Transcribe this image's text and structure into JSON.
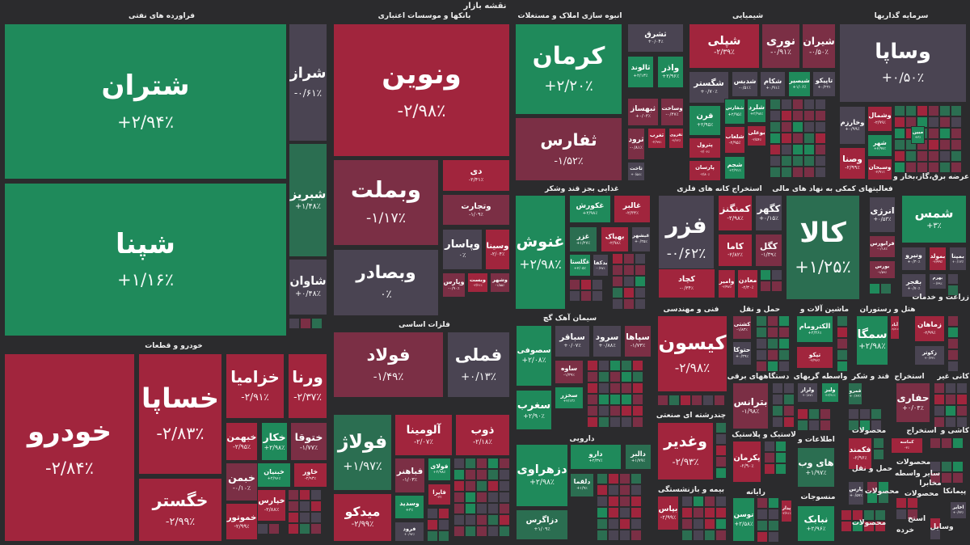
{
  "header": {
    "title": "نقشه بازار"
  },
  "colors": {
    "up-strong": "#1f8a5b",
    "up": "#2b6e51",
    "flat": "#4a4452",
    "down": "#7b2f45",
    "down-strong": "#a1253d",
    "background": "#2b2b2d"
  },
  "sectors": [
    {
      "label": "فراورده های نفتی"
    },
    {
      "label": "بانکها و موسسات اعتباری"
    },
    {
      "label": "انبوه سازی املاک و مستغلات"
    },
    {
      "label": "شیمیایی"
    },
    {
      "label": "سرمایه گذاریها"
    },
    {
      "label": "غذایی بجز قند وشکر"
    },
    {
      "label": "استخراج کانه های فلزی"
    },
    {
      "label": "فعالیتهای کمکی به نهاد های مالی"
    },
    {
      "label": "عرضه برق،گاز،بخار و"
    },
    {
      "label": "خودرو و قطعات"
    },
    {
      "label": "فلزات اساسی"
    },
    {
      "label": "سیمان آهک گچ"
    },
    {
      "label": "فنی و مهندسی"
    },
    {
      "label": "حمل و نقل"
    },
    {
      "label": "ماشین آلات و"
    },
    {
      "label": "هتل و رستوران"
    },
    {
      "label": "زراعت و خدمات"
    },
    {
      "label": "دستگاههای برقی"
    },
    {
      "label": "واسطه گریهای"
    },
    {
      "label": "قند و شکر"
    },
    {
      "label": "استخراج"
    },
    {
      "label": "کانی غیر"
    },
    {
      "label": "دارویی"
    },
    {
      "label": "چندرشته ای صنعتی"
    },
    {
      "label": "لاستیک و پلاستیک"
    },
    {
      "label": "اطلاعات و"
    },
    {
      "label": "محصولات"
    },
    {
      "label": "استخراج"
    },
    {
      "label": "کاشی و"
    },
    {
      "label": "محصولات"
    },
    {
      "label": "حمل و نقل"
    },
    {
      "label": "سایر واسطه"
    },
    {
      "label": "بیمه و بازنشستگی"
    },
    {
      "label": "رایانه"
    },
    {
      "label": "منسوجات"
    },
    {
      "label": "محصولات"
    },
    {
      "label": "محصولات"
    },
    {
      "label": "پیمانکا"
    },
    {
      "label": "مخابرا"
    },
    {
      "label": "محصولات"
    },
    {
      "label": "خرده"
    },
    {
      "label": "وسایل"
    },
    {
      "label": "استخ"
    }
  ],
  "tiles": [
    {
      "symbol": "شتران",
      "change": "+۲/۹۴٪",
      "tone": "up-strong"
    },
    {
      "symbol": "شپنا",
      "change": "+۱/۱۶٪",
      "tone": "up-strong"
    },
    {
      "symbol": "شراز",
      "change": "-۰/۶۱٪",
      "tone": "flat"
    },
    {
      "symbol": "شبریز",
      "change": "+۱/۴۸٪",
      "tone": "up"
    },
    {
      "symbol": "شاوان",
      "change": "+۰/۴۸٪",
      "tone": "flat"
    },
    {
      "symbol": "ونوین",
      "change": "-۲/۹۸٪",
      "tone": "down-strong"
    },
    {
      "symbol": "وبملت",
      "change": "-۱/۱۷٪",
      "tone": "down"
    },
    {
      "symbol": "وبصادر",
      "change": "۰٪",
      "tone": "flat"
    },
    {
      "symbol": "دی",
      "change": "-۲/۴۱٪",
      "tone": "down-strong"
    },
    {
      "symbol": "وتجارت",
      "change": "-۱/۰۹٪",
      "tone": "down"
    },
    {
      "symbol": "وپاسار",
      "change": "۰٪",
      "tone": "flat"
    },
    {
      "symbol": "وسینا",
      "change": "-۲/۰۴٪",
      "tone": "down-strong"
    },
    {
      "symbol": "وپارس",
      "change": "-۰/۹۰٪",
      "tone": "down"
    },
    {
      "symbol": "وبست",
      "change": "-۲/۴۱٪",
      "tone": "down-strong"
    },
    {
      "symbol": "وشهر",
      "change": "-۱/۵۵٪",
      "tone": "down"
    },
    {
      "symbol": "کرمان",
      "change": "+۲/۲۰٪",
      "tone": "up-strong"
    },
    {
      "symbol": "ثفارس",
      "change": "-۱/۵۲٪",
      "tone": "down"
    },
    {
      "symbol": "ثشرق",
      "change": "+۰/۰۴٪",
      "tone": "flat"
    },
    {
      "symbol": "ثالوند",
      "change": "+۲/۱۳٪",
      "tone": "up-strong"
    },
    {
      "symbol": "واذر",
      "change": "+۲/۹۶٪",
      "tone": "up-strong"
    },
    {
      "symbol": "ثبهساز",
      "change": "+۰/۰۳٪",
      "tone": "down"
    },
    {
      "symbol": "وساخت",
      "change": "-۰/۴۷٪",
      "tone": "down"
    },
    {
      "symbol": "ثرود",
      "change": "-۰/۸۱٪",
      "tone": "down"
    },
    {
      "symbol": "ثغرب",
      "change": "-۲/۹۹٪",
      "tone": "down-strong"
    },
    {
      "symbol": "ثقزوی",
      "change": "-۲/۶۲٪",
      "tone": "down-strong"
    },
    {
      "symbol": "ثاخت",
      "change": "+۰/۵۸٪",
      "tone": "flat"
    },
    {
      "symbol": "شپلی",
      "change": "-۲/۳۹٪",
      "tone": "down-strong"
    },
    {
      "symbol": "نوری",
      "change": "-۰/۹۱٪",
      "tone": "down"
    },
    {
      "symbol": "شیران",
      "change": "-۰/۵۰٪",
      "tone": "down"
    },
    {
      "symbol": "شگستر",
      "change": "+۰/۷۰٪",
      "tone": "flat"
    },
    {
      "symbol": "شدبس",
      "change": "-۰/۵۱٪",
      "tone": "flat"
    },
    {
      "symbol": "شکام",
      "change": "+۰/۹۱٪",
      "tone": "flat"
    },
    {
      "symbol": "شبصیر",
      "change": "+۱/۰۶٪",
      "tone": "up-strong"
    },
    {
      "symbol": "تاپیکو",
      "change": "+۰/۲۳٪",
      "tone": "flat"
    },
    {
      "symbol": "قرن",
      "change": "+۲/۹۵٪",
      "tone": "up-strong"
    },
    {
      "symbol": "پترول",
      "change": "-۲/۰۶٪",
      "tone": "down-strong"
    },
    {
      "symbol": "پارسان",
      "change": "-۲/۸۰٪",
      "tone": "down-strong"
    },
    {
      "symbol": "شفارس",
      "change": "+۲/۹۵٪",
      "tone": "up-strong"
    },
    {
      "symbol": "شلعاب",
      "change": "-۲/۹۵٪",
      "tone": "down-strong"
    },
    {
      "symbol": "شجم",
      "change": "+۲/۹۱٪",
      "tone": "up-strong"
    },
    {
      "symbol": "شلرد",
      "change": "+۲/۹۸٪",
      "tone": "up-strong"
    },
    {
      "symbol": "بوعلی",
      "change": "-۲/۵۴٪",
      "tone": "down-strong"
    },
    {
      "symbol": "وساپا",
      "change": "+۰/۵۰٪",
      "tone": "flat"
    },
    {
      "symbol": "وخارزم",
      "change": "+۰/۹۹٪",
      "tone": "flat"
    },
    {
      "symbol": "وشمال",
      "change": "-۲/۹۹٪",
      "tone": "down-strong"
    },
    {
      "symbol": "شهر",
      "change": "+۲/۹۷٪",
      "tone": "up-strong"
    },
    {
      "symbol": "وصنا",
      "change": "-۲/۹۹٪",
      "tone": "down-strong"
    },
    {
      "symbol": "وسبحان",
      "change": "-۲/۹۱٪",
      "tone": "down-strong"
    },
    {
      "symbol": "مبین",
      "change": "+۳٪",
      "tone": "up-strong"
    },
    {
      "symbol": "غنوش",
      "change": "+۲/۹۸٪",
      "tone": "up-strong"
    },
    {
      "symbol": "غکورش",
      "change": "+۲/۹۸٪",
      "tone": "up-strong"
    },
    {
      "symbol": "غالبر",
      "change": "-۲/۳۴٪",
      "tone": "down-strong"
    },
    {
      "symbol": "غزر",
      "change": "+۱/۲۷٪",
      "tone": "up"
    },
    {
      "symbol": "بهپاک",
      "change": "-۲/۹۸٪",
      "tone": "down-strong"
    },
    {
      "symbol": "غبشهر",
      "change": "+۰/۳۵٪",
      "tone": "flat"
    },
    {
      "symbol": "غگلستا",
      "change": "+۲/۰۵٪",
      "tone": "up-strong"
    },
    {
      "symbol": "بدکفا",
      "change": "-۰/۹۷٪",
      "tone": "flat"
    },
    {
      "symbol": "فزر",
      "change": "-۰/۶۲٪",
      "tone": "flat"
    },
    {
      "symbol": "کمنگنز",
      "change": "-۲/۹۸٪",
      "tone": "down-strong"
    },
    {
      "symbol": "کگهر",
      "change": "+۰/۱۵٪",
      "tone": "flat"
    },
    {
      "symbol": "کاما",
      "change": "-۲/۸۲٪",
      "tone": "down-strong"
    },
    {
      "symbol": "کگل",
      "change": "-۱/۳۹٪",
      "tone": "down"
    },
    {
      "symbol": "کچاد",
      "change": "-۰/۳۴٪",
      "tone": "down-strong"
    },
    {
      "symbol": "وامیر",
      "change": "-۲/۹۷٪",
      "tone": "down-strong"
    },
    {
      "symbol": "معادن",
      "change": "-۲/۳۰٪",
      "tone": "down-strong"
    },
    {
      "symbol": "کالا",
      "change": "+۱/۲۵٪",
      "tone": "up"
    },
    {
      "symbol": "انرژی",
      "change": "+۰/۵۳٪",
      "tone": "flat"
    },
    {
      "symbol": "فرابورس",
      "change": "-۰/۱۸٪",
      "tone": "down"
    },
    {
      "symbol": "بورس",
      "change": "-۱/۵۹٪",
      "tone": "down"
    },
    {
      "symbol": "شمس",
      "change": "+۳٪",
      "tone": "up-strong"
    },
    {
      "symbol": "ونیرو",
      "change": "+۰/۳۰٪",
      "tone": "flat"
    },
    {
      "symbol": "بمولد",
      "change": "-۲/۹۹٪",
      "tone": "down-strong"
    },
    {
      "symbol": "بمپنا",
      "change": "+۰/۱۲٪",
      "tone": "flat"
    },
    {
      "symbol": "بفجر",
      "change": "+۰/۷۰٪",
      "tone": "flat"
    },
    {
      "symbol": "بهرم",
      "change": "-۰/۳۹٪",
      "tone": "flat"
    },
    {
      "symbol": "خودرو",
      "change": "-۲/۸۴٪",
      "tone": "down-strong"
    },
    {
      "symbol": "خساپا",
      "change": "-۲/۸۳٪",
      "tone": "down-strong"
    },
    {
      "symbol": "خگستر",
      "change": "-۲/۹۹٪",
      "tone": "down-strong"
    },
    {
      "symbol": "خزامیا",
      "change": "-۲/۹۱٪",
      "tone": "down-strong"
    },
    {
      "symbol": "ورنا",
      "change": "-۲/۳۷٪",
      "tone": "down-strong"
    },
    {
      "symbol": "خبهمن",
      "change": "-۲/۹۵٪",
      "tone": "down-strong"
    },
    {
      "symbol": "خکار",
      "change": "+۲/۹۸٪",
      "tone": "up-strong"
    },
    {
      "symbol": "ختوقا",
      "change": "-۱/۷۷٪",
      "tone": "down"
    },
    {
      "symbol": "خبمن",
      "change": "-۰/۱۰٪",
      "tone": "down"
    },
    {
      "symbol": "خبنیان",
      "change": "+۲/۹۶٪",
      "tone": "up-strong"
    },
    {
      "symbol": "خاور",
      "change": "-۲/۹۳٪",
      "tone": "down-strong"
    },
    {
      "symbol": "خپارس",
      "change": "-۲/۸۸٪",
      "tone": "down-strong"
    },
    {
      "symbol": "خموتور",
      "change": "-۲/۹۹٪",
      "tone": "down-strong"
    },
    {
      "symbol": "فولاد",
      "change": "-۱/۴۹٪",
      "tone": "down"
    },
    {
      "symbol": "فملی",
      "change": "+۰/۱۳٪",
      "tone": "flat"
    },
    {
      "symbol": "فولاژ",
      "change": "+۱/۹۷٪",
      "tone": "up"
    },
    {
      "symbol": "آلومینا",
      "change": "-۲/۰۷٪",
      "tone": "down-strong"
    },
    {
      "symbol": "ذوب",
      "change": "-۲/۱۸٪",
      "tone": "down-strong"
    },
    {
      "symbol": "فباهنر",
      "change": "-۱/۰۳٪",
      "tone": "down"
    },
    {
      "symbol": "فولای",
      "change": "+۲/۹۸٪",
      "tone": "up-strong"
    },
    {
      "symbol": "فایرا",
      "change": "-۳٪",
      "tone": "down-strong"
    },
    {
      "symbol": "میدکو",
      "change": "-۲/۹۹٪",
      "tone": "down-strong"
    },
    {
      "symbol": "وسدید",
      "change": "+۳٪",
      "tone": "up-strong"
    },
    {
      "symbol": "فرود",
      "change": "+۰/۹۲٪",
      "tone": "flat"
    },
    {
      "symbol": "سصوفی",
      "change": "+۲/۰۸٪",
      "tone": "up-strong"
    },
    {
      "symbol": "سغرب",
      "change": "+۲/۹۰٪",
      "tone": "up-strong"
    },
    {
      "symbol": "سباقر",
      "change": "+۰/۰۷٪",
      "tone": "flat"
    },
    {
      "symbol": "سرود",
      "change": "+۰/۸۸٪",
      "tone": "flat"
    },
    {
      "symbol": "سپاها",
      "change": "-۱/۷۳٪",
      "tone": "down"
    },
    {
      "symbol": "ساوه",
      "change": "-۱/۳۹٪",
      "tone": "down"
    },
    {
      "symbol": "سخزر",
      "change": "+۲/۱۳٪",
      "tone": "up-strong"
    },
    {
      "symbol": "دزهراوی",
      "change": "+۲/۹۸٪",
      "tone": "up-strong"
    },
    {
      "symbol": "دزاگرس",
      "change": "+۱/۰۹٪",
      "tone": "up"
    },
    {
      "symbol": "دارو",
      "change": "+۲/۳۷٪",
      "tone": "up-strong"
    },
    {
      "symbol": "دالبر",
      "change": "+۱/۷۹٪",
      "tone": "up"
    },
    {
      "symbol": "دلقما",
      "change": "+۱/۹٪",
      "tone": "up"
    },
    {
      "symbol": "کیسون",
      "change": "-۲/۹۸٪",
      "tone": "down-strong"
    },
    {
      "symbol": "وغدیر",
      "change": "-۲/۹۳٪",
      "tone": "down-strong"
    },
    {
      "symbol": "بپاس",
      "change": "-۲/۹۹٪",
      "tone": "down-strong"
    },
    {
      "symbol": "کشتی",
      "change": "-۱/۸۳٪",
      "tone": "down"
    },
    {
      "symbol": "حتوکا",
      "change": "+۰/۳۹٪",
      "tone": "flat"
    },
    {
      "symbol": "الکترومام",
      "change": "+۲/۴۶٪",
      "tone": "up-strong"
    },
    {
      "symbol": "تیکو",
      "change": "-۲/۹۶٪",
      "tone": "down-strong"
    },
    {
      "symbol": "بترانس",
      "change": "-۱/۹۸٪",
      "tone": "down"
    },
    {
      "symbol": "ولراز",
      "change": "+۰/۸۷٪",
      "tone": "flat"
    },
    {
      "symbol": "ولیز",
      "change": "+۲/۹۱٪",
      "tone": "up-strong"
    },
    {
      "symbol": "پکرمان",
      "change": "-۲/۹۰٪",
      "tone": "down-strong"
    },
    {
      "symbol": "های وب",
      "change": "+۱/۹۷٪",
      "tone": "up"
    },
    {
      "symbol": "توسن",
      "change": "+۲/۵۸٪",
      "tone": "up-strong"
    },
    {
      "symbol": "پدار",
      "change": "-۲/۹۱٪",
      "tone": "down-strong"
    },
    {
      "symbol": "نبابک",
      "change": "+۲/۹۶٪",
      "tone": "up-strong"
    },
    {
      "symbol": "سمگا",
      "change": "+۲/۹۸٪",
      "tone": "up-strong"
    },
    {
      "symbol": "آباد",
      "change": "-۲/۸۱٪",
      "tone": "down-strong"
    },
    {
      "symbol": "قمرو",
      "change": "+۰/۶۲٪",
      "tone": "up"
    },
    {
      "symbol": "حفاری",
      "change": "+۰/۰۴٪",
      "tone": "down"
    },
    {
      "symbol": "زماهان",
      "change": "-۲/۹۹٪",
      "tone": "down-strong"
    },
    {
      "symbol": "زکوثر",
      "change": "+۰/۳۳٪",
      "tone": "flat"
    },
    {
      "symbol": "فکمند",
      "change": "-۲/۹۶٪",
      "tone": "down-strong"
    },
    {
      "symbol": "کماسه",
      "change": "-۳٪",
      "tone": "down-strong"
    },
    {
      "symbol": "پارس",
      "change": "+۰/۵۷٪",
      "tone": "flat"
    },
    {
      "symbol": "اخابر",
      "change": "+۰/۳۳٪",
      "tone": "flat"
    }
  ]
}
